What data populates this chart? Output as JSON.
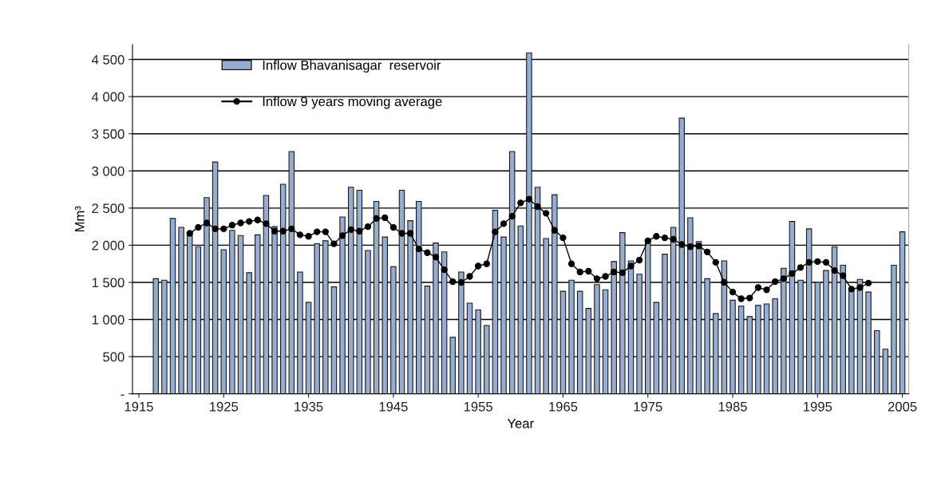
{
  "chart_data": {
    "type": "bar",
    "xlabel": "Year",
    "ylabel": "Mm³",
    "x": [
      1917,
      1918,
      1919,
      1920,
      1921,
      1922,
      1923,
      1924,
      1925,
      1926,
      1927,
      1928,
      1929,
      1930,
      1931,
      1932,
      1933,
      1934,
      1935,
      1936,
      1937,
      1938,
      1939,
      1940,
      1941,
      1942,
      1943,
      1944,
      1945,
      1946,
      1947,
      1948,
      1949,
      1950,
      1951,
      1952,
      1953,
      1954,
      1955,
      1956,
      1957,
      1958,
      1959,
      1960,
      1961,
      1962,
      1963,
      1964,
      1965,
      1966,
      1967,
      1968,
      1969,
      1970,
      1971,
      1972,
      1973,
      1974,
      1975,
      1976,
      1977,
      1978,
      1979,
      1980,
      1981,
      1982,
      1983,
      1984,
      1985,
      1986,
      1987,
      1988,
      1989,
      1990,
      1991,
      1992,
      1993,
      1994,
      1995,
      1996,
      1997,
      1998,
      1999,
      2000,
      2001,
      2002,
      2003,
      2004,
      2005
    ],
    "series": [
      {
        "name": "Inflow Bhavanisagar  reservoir",
        "color": "#95add3",
        "values": [
          1550,
          1530,
          2360,
          2240,
          2140,
          1980,
          2640,
          3120,
          1940,
          2200,
          2130,
          1630,
          2140,
          2670,
          2250,
          2820,
          3260,
          1640,
          1230,
          2020,
          2060,
          1440,
          2380,
          2780,
          2740,
          1930,
          2590,
          2110,
          1710,
          2740,
          2330,
          2590,
          1450,
          2030,
          1910,
          760,
          1640,
          1220,
          1130,
          920,
          2470,
          2110,
          3260,
          2260,
          4590,
          2780,
          2090,
          2680,
          1380,
          1530,
          1380,
          1150,
          1470,
          1400,
          1780,
          2170,
          1790,
          1610,
          2070,
          1230,
          1880,
          2240,
          3710,
          2370,
          2050,
          1550,
          1080,
          1790,
          1260,
          1180,
          1040,
          1190,
          1210,
          1280,
          1690,
          2320,
          1530,
          2220,
          1500,
          1660,
          1980,
          1730,
          1420,
          1540,
          1370,
          850,
          600,
          1730,
          2180
        ]
      },
      {
        "name": "Inflow 9 years moving average",
        "type": "line",
        "color": "#000000",
        "marker": "circle",
        "line_style": "solid",
        "x": [
          1921,
          1922,
          1923,
          1924,
          1925,
          1926,
          1927,
          1928,
          1929,
          1930,
          1931,
          1932,
          1933,
          1934,
          1935,
          1936,
          1937,
          1938,
          1939,
          1940,
          1941,
          1942,
          1943,
          1944,
          1945,
          1946,
          1947,
          1948,
          1949,
          1950,
          1951,
          1952,
          1953,
          1954,
          1955,
          1956,
          1957,
          1958,
          1959,
          1960,
          1961,
          1962,
          1963,
          1964,
          1965,
          1966,
          1967,
          1968,
          1969,
          1970,
          1971,
          1972,
          1973,
          1974,
          1975,
          1976,
          1977,
          1978,
          1979,
          1980,
          1981,
          1982,
          1983,
          1984,
          1985,
          1986,
          1987,
          1988,
          1989,
          1990,
          1991,
          1992,
          1993,
          1994,
          1995,
          1996,
          1997,
          1998,
          1999,
          2000,
          2001
        ],
        "values": [
          2160,
          2240,
          2300,
          2220,
          2220,
          2270,
          2300,
          2320,
          2340,
          2290,
          2190,
          2190,
          2220,
          2140,
          2120,
          2180,
          2180,
          2020,
          2130,
          2210,
          2190,
          2250,
          2360,
          2370,
          2240,
          2160,
          2160,
          1950,
          1900,
          1840,
          1670,
          1510,
          1500,
          1580,
          1720,
          1750,
          2180,
          2290,
          2390,
          2570,
          2620,
          2520,
          2430,
          2200,
          2100,
          1750,
          1640,
          1650,
          1550,
          1580,
          1640,
          1630,
          1720,
          1800,
          2060,
          2120,
          2100,
          2080,
          2010,
          1980,
          1990,
          1910,
          1770,
          1500,
          1370,
          1280,
          1290,
          1430,
          1400,
          1510,
          1550,
          1620,
          1700,
          1770,
          1780,
          1770,
          1660,
          1590,
          1410,
          1430,
          1490
        ]
      }
    ],
    "xlim": [
      1914.25,
      2005.75
    ],
    "xticks": [
      1915,
      1925,
      1935,
      1945,
      1955,
      1965,
      1975,
      1985,
      1995,
      2005
    ],
    "ylim": [
      0,
      4700
    ],
    "yticks": [
      {
        "value": 0,
        "label": "-"
      },
      {
        "value": 500,
        "label": "500"
      },
      {
        "value": 1000,
        "label": "1 000"
      },
      {
        "value": 1500,
        "label": "1 500"
      },
      {
        "value": 2000,
        "label": "2 000"
      },
      {
        "value": 2500,
        "label": "2 500"
      },
      {
        "value": 3000,
        "label": "3 000"
      },
      {
        "value": 3500,
        "label": "3 500"
      },
      {
        "value": 4000,
        "label": "4 000"
      },
      {
        "value": 4500,
        "label": "4 500"
      }
    ],
    "grid": "y",
    "legend": "top left"
  }
}
